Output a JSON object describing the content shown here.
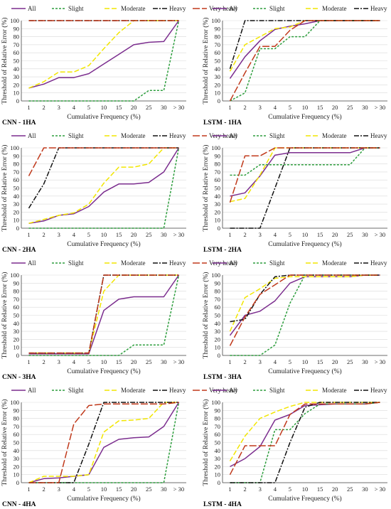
{
  "legend_labels": [
    "All",
    "Slight",
    "Moderate",
    "Heavy",
    "Very heavy"
  ],
  "styles": {
    "All": {
      "color": "#7b2d8e",
      "dash": ""
    },
    "Slight": {
      "color": "#2e9e3e",
      "dash": "3,2"
    },
    "Moderate": {
      "color": "#f2e600",
      "dash": "7,3"
    },
    "Heavy": {
      "color": "#111111",
      "dash": "7,2,2,2"
    },
    "Very heavy": {
      "color": "#c0391b",
      "dash": "10,3"
    }
  },
  "chart_data": [
    {
      "type": "line",
      "title": "CNN - 1HA",
      "xlabel": "Cumulative Frequency (%)",
      "ylabel": "Threshold of Relative  Error (%)",
      "categories": [
        "1",
        "2",
        "3",
        "4",
        "5",
        "10",
        "15",
        "20",
        "25",
        "30",
        "> 30"
      ],
      "ylim": [
        0,
        100
      ],
      "yticks": [
        0,
        10,
        20,
        30,
        40,
        50,
        60,
        70,
        80,
        90,
        100
      ],
      "series": [
        {
          "name": "All",
          "values": [
            16,
            21,
            29,
            29,
            34,
            46,
            58,
            70,
            73,
            74,
            100
          ]
        },
        {
          "name": "Slight",
          "values": [
            0,
            0,
            0,
            0,
            0,
            0,
            0,
            0,
            13,
            13,
            100
          ]
        },
        {
          "name": "Moderate",
          "values": [
            16,
            24,
            36,
            36,
            44,
            65,
            85,
            100,
            100,
            100,
            100
          ]
        },
        {
          "name": "Heavy",
          "values": [
            100,
            100,
            100,
            100,
            100,
            100,
            100,
            100,
            100,
            100,
            100
          ]
        },
        {
          "name": "Very heavy",
          "values": [
            100,
            100,
            100,
            100,
            100,
            100,
            100,
            100,
            100,
            100,
            100
          ]
        }
      ]
    },
    {
      "type": "line",
      "title": "LSTM - 1HA",
      "xlabel": "Cumulative Frequency (%)",
      "ylabel": "Threshold of Relative  Error (%)",
      "categories": [
        "1",
        "2",
        "3",
        "4",
        "5",
        "10",
        "15",
        "20",
        "25",
        "30",
        "> 30"
      ],
      "ylim": [
        0,
        100
      ],
      "yticks": [
        0,
        10,
        20,
        30,
        40,
        50,
        60,
        70,
        80,
        90,
        100
      ],
      "series": [
        {
          "name": "All",
          "values": [
            28,
            55,
            75,
            89,
            93,
            96,
            100,
            100,
            100,
            100,
            100
          ]
        },
        {
          "name": "Slight",
          "values": [
            0,
            10,
            65,
            65,
            80,
            80,
            100,
            100,
            100,
            100,
            100
          ]
        },
        {
          "name": "Moderate",
          "values": [
            37,
            70,
            80,
            90,
            92,
            100,
            100,
            100,
            100,
            100,
            100
          ]
        },
        {
          "name": "Heavy",
          "values": [
            40,
            100,
            100,
            100,
            100,
            100,
            100,
            100,
            100,
            100,
            100
          ]
        },
        {
          "name": "Very heavy",
          "values": [
            0,
            35,
            68,
            68,
            88,
            100,
            100,
            100,
            100,
            100,
            100
          ]
        }
      ]
    },
    {
      "type": "line",
      "title": "CNN - 2HA",
      "xlabel": "Cumulative Frequency (%)",
      "ylabel": "Threshold of Relative  Error (%)",
      "categories": [
        "1",
        "2",
        "3",
        "4",
        "5",
        "10",
        "15",
        "20",
        "25",
        "30",
        "> 30"
      ],
      "ylim": [
        0,
        100
      ],
      "yticks": [
        0,
        10,
        20,
        30,
        40,
        50,
        60,
        70,
        80,
        90,
        100
      ],
      "series": [
        {
          "name": "All",
          "values": [
            6,
            9,
            16,
            18,
            27,
            45,
            55,
            55,
            57,
            70,
            100
          ]
        },
        {
          "name": "Slight",
          "values": [
            0,
            0,
            0,
            0,
            0,
            0,
            0,
            0,
            0,
            0,
            100
          ]
        },
        {
          "name": "Moderate",
          "values": [
            6,
            11,
            16,
            19,
            30,
            56,
            76,
            76,
            80,
            100,
            100
          ]
        },
        {
          "name": "Heavy",
          "values": [
            25,
            55,
            100,
            100,
            100,
            100,
            100,
            100,
            100,
            100,
            100
          ]
        },
        {
          "name": "Very heavy",
          "values": [
            65,
            100,
            100,
            100,
            100,
            100,
            100,
            100,
            100,
            100,
            100
          ]
        }
      ]
    },
    {
      "type": "line",
      "title": "LSTM - 2HA",
      "xlabel": "Cumulative Frequency (%)",
      "ylabel": "Threshold of Relative  Error (%)",
      "categories": [
        "1",
        "2",
        "3",
        "4",
        "5",
        "10",
        "15",
        "20",
        "25",
        "30",
        "> 30"
      ],
      "ylim": [
        0,
        100
      ],
      "yticks": [
        0,
        10,
        20,
        30,
        40,
        50,
        60,
        70,
        80,
        90,
        100
      ],
      "series": [
        {
          "name": "All",
          "values": [
            40,
            44,
            65,
            91,
            94,
            94,
            94,
            94,
            94,
            100,
            100
          ]
        },
        {
          "name": "Slight",
          "values": [
            66,
            66,
            79,
            79,
            79,
            79,
            79,
            79,
            79,
            100,
            100
          ]
        },
        {
          "name": "Moderate",
          "values": [
            33,
            37,
            66,
            100,
            100,
            100,
            100,
            100,
            100,
            100,
            100
          ]
        },
        {
          "name": "Heavy",
          "values": [
            0,
            0,
            0,
            50,
            100,
            100,
            100,
            100,
            100,
            100,
            100
          ]
        },
        {
          "name": "Very heavy",
          "values": [
            32,
            90,
            90,
            100,
            100,
            100,
            100,
            100,
            100,
            100,
            100
          ]
        }
      ]
    },
    {
      "type": "line",
      "title": "CNN - 3HA",
      "xlabel": "Cumulative Frequency (%)",
      "ylabel": "Threshold of Relative  Error (%)",
      "categories": [
        "1",
        "2",
        "3",
        "4",
        "5",
        "10",
        "15",
        "20",
        "25",
        "30",
        "> 30"
      ],
      "ylim": [
        0,
        100
      ],
      "yticks": [
        0,
        10,
        20,
        30,
        40,
        50,
        60,
        70,
        80,
        90,
        100
      ],
      "series": [
        {
          "name": "All",
          "values": [
            2,
            2,
            2,
            2,
            2,
            56,
            70,
            73,
            73,
            73,
            100
          ]
        },
        {
          "name": "Slight",
          "values": [
            0,
            0,
            0,
            0,
            0,
            0,
            0,
            13,
            13,
            13,
            100
          ]
        },
        {
          "name": "Moderate",
          "values": [
            3,
            3,
            3,
            3,
            3,
            80,
            100,
            100,
            100,
            100,
            100
          ]
        },
        {
          "name": "Heavy",
          "values": [
            3,
            3,
            3,
            3,
            3,
            100,
            100,
            100,
            100,
            100,
            100
          ]
        },
        {
          "name": "Very heavy",
          "values": [
            3,
            3,
            3,
            3,
            3,
            100,
            100,
            100,
            100,
            100,
            100
          ]
        }
      ]
    },
    {
      "type": "line",
      "title": "LSTM - 3HA",
      "xlabel": "Cumulative Frequency (%)",
      "ylabel": "Threshold of Relative  Error (%)",
      "categories": [
        "1",
        "2",
        "3",
        "4",
        "5",
        "10",
        "15",
        "20",
        "25",
        "30",
        "> 30"
      ],
      "ylim": [
        0,
        100
      ],
      "yticks": [
        0,
        10,
        20,
        30,
        40,
        50,
        60,
        70,
        80,
        90,
        100
      ],
      "series": [
        {
          "name": "All",
          "values": [
            25,
            50,
            55,
            68,
            90,
            98,
            98,
            98,
            98,
            100,
            100
          ]
        },
        {
          "name": "Slight",
          "values": [
            0,
            0,
            0,
            13,
            65,
            100,
            100,
            100,
            100,
            100,
            100
          ]
        },
        {
          "name": "Moderate",
          "values": [
            30,
            72,
            83,
            96,
            98,
            98,
            98,
            98,
            98,
            100,
            100
          ]
        },
        {
          "name": "Heavy",
          "values": [
            42,
            45,
            76,
            98,
            100,
            100,
            100,
            100,
            100,
            100,
            100
          ]
        },
        {
          "name": "Very heavy",
          "values": [
            12,
            48,
            76,
            88,
            100,
            100,
            100,
            100,
            100,
            100,
            100
          ]
        }
      ]
    },
    {
      "type": "line",
      "title": "CNN - 4HA",
      "xlabel": "Cumulative Frequency (%)",
      "ylabel": "Threshold of Relative  Error (%)",
      "categories": [
        "1",
        "2",
        "3",
        "4",
        "5",
        "10",
        "15",
        "20",
        "25",
        "30",
        "> 30"
      ],
      "ylim": [
        0,
        100
      ],
      "yticks": [
        0,
        10,
        20,
        30,
        40,
        50,
        60,
        70,
        80,
        90,
        100
      ],
      "series": [
        {
          "name": "All",
          "values": [
            0,
            5,
            6,
            8,
            10,
            44,
            54,
            56,
            57,
            70,
            100
          ]
        },
        {
          "name": "Slight",
          "values": [
            0,
            0,
            0,
            0,
            0,
            0,
            0,
            0,
            0,
            0,
            100
          ]
        },
        {
          "name": "Moderate",
          "values": [
            0,
            8,
            8,
            8,
            10,
            63,
            77,
            78,
            80,
            100,
            100
          ]
        },
        {
          "name": "Heavy",
          "values": [
            0,
            0,
            0,
            0,
            48,
            100,
            100,
            100,
            100,
            100,
            100
          ]
        },
        {
          "name": "Very heavy",
          "values": [
            0,
            0,
            0,
            73,
            96,
            98,
            98,
            98,
            98,
            98,
            100
          ]
        }
      ]
    },
    {
      "type": "line",
      "title": "LSTM - 4HA",
      "xlabel": "Cumulative Frequency (%)",
      "ylabel": "Threshold of Relative  Error (%)",
      "categories": [
        "1",
        "2",
        "3",
        "4",
        "5",
        "10",
        "15",
        "20",
        "25",
        "30",
        "> 30"
      ],
      "ylim": [
        0,
        100
      ],
      "yticks": [
        0,
        10,
        20,
        30,
        40,
        50,
        60,
        70,
        80,
        90,
        100
      ],
      "series": [
        {
          "name": "All",
          "values": [
            20,
            30,
            45,
            78,
            85,
            96,
            97,
            98,
            98,
            98,
            100
          ]
        },
        {
          "name": "Slight",
          "values": [
            0,
            0,
            0,
            66,
            66,
            86,
            98,
            98,
            98,
            98,
            100
          ]
        },
        {
          "name": "Moderate",
          "values": [
            27,
            58,
            80,
            88,
            95,
            100,
            100,
            100,
            100,
            100,
            100
          ]
        },
        {
          "name": "Heavy",
          "values": [
            0,
            0,
            0,
            0,
            50,
            94,
            100,
            100,
            100,
            100,
            100
          ]
        },
        {
          "name": "Very heavy",
          "values": [
            10,
            46,
            46,
            46,
            85,
            98,
            98,
            98,
            98,
            98,
            100
          ]
        }
      ]
    }
  ]
}
